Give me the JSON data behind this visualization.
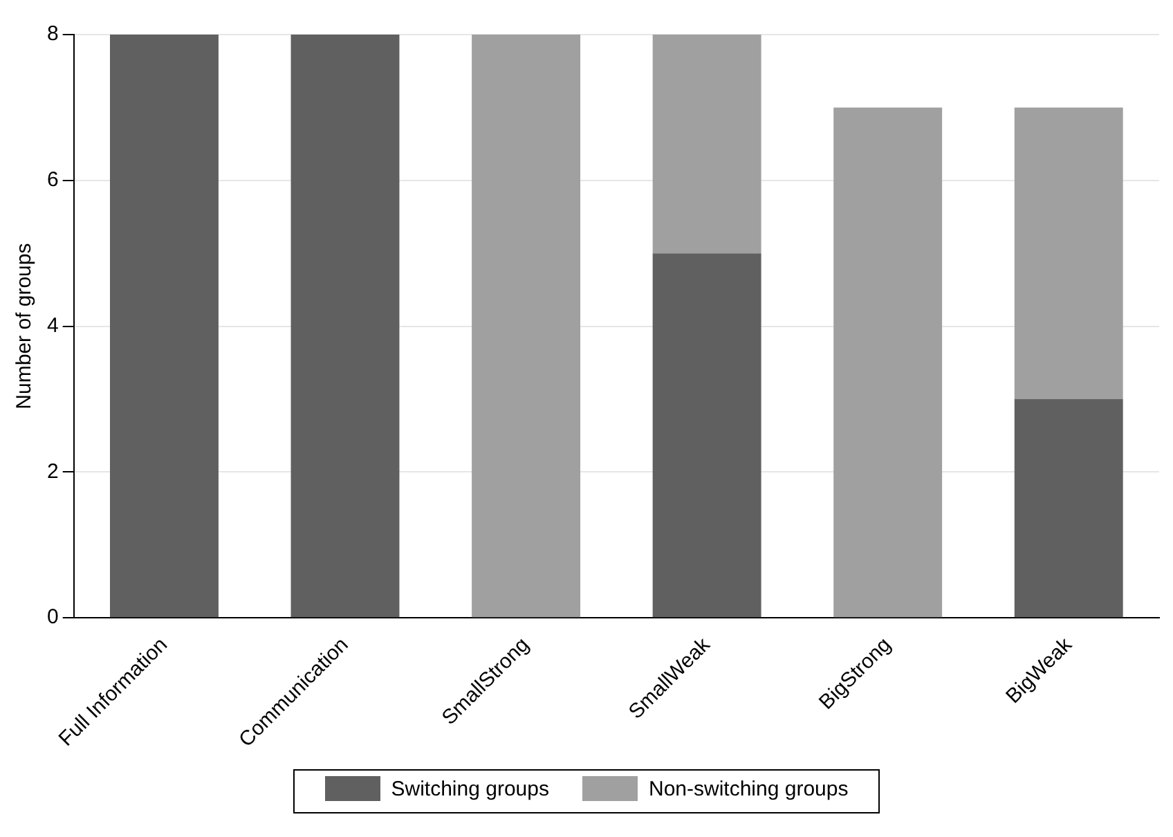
{
  "chart_data": {
    "type": "bar",
    "stacked": true,
    "ylabel": "Number of groups",
    "categories": [
      "Full Information",
      "Communication",
      "SmallStrong",
      "SmallWeak",
      "BigStrong",
      "BigWeak"
    ],
    "series": [
      {
        "name": "Switching groups",
        "color": "#606060",
        "values": [
          8,
          8,
          0,
          5,
          0,
          3
        ]
      },
      {
        "name": "Non-switching groups",
        "color": "#a0a0a0",
        "values": [
          0,
          0,
          8,
          3,
          7,
          4
        ]
      }
    ],
    "ylim": [
      0,
      8
    ],
    "yticks": [
      0,
      2,
      4,
      6,
      8
    ],
    "grid": "y",
    "legend": "bottom"
  }
}
